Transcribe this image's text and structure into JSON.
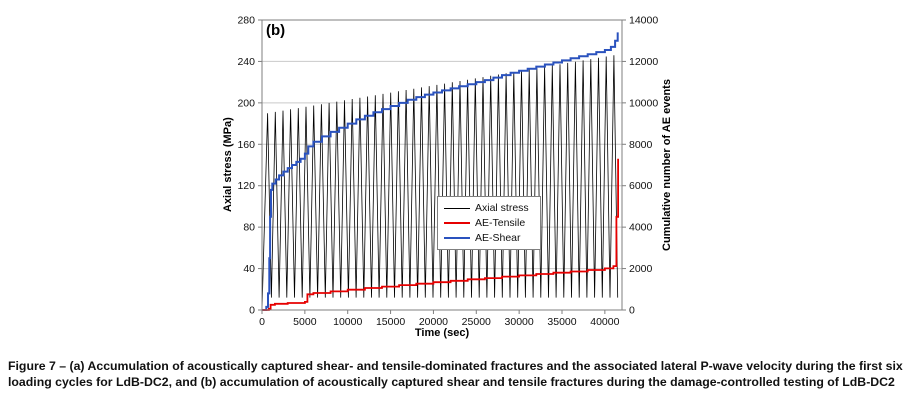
{
  "caption": {
    "line1": "Figure 7 – (a) Accumulation of acoustically captured shear- and tensile-dominated fractures and the associated lateral P-wave velocity during the first six",
    "line2": "loading cycles for LdB-DC2, and (b) accumulation of acoustically captured shear and tensile fractures during the damage-controlled testing of LdB-DC2"
  },
  "chart_data": {
    "type": "line",
    "title": "",
    "panel_label": "(b)",
    "xlabel": "Time (sec)",
    "ylabel_left": "Axial stress (MPa)",
    "ylabel_right": "Cumulative number of AE events",
    "xlim": [
      0,
      42000
    ],
    "xticks": [
      0,
      5000,
      10000,
      15000,
      20000,
      25000,
      30000,
      35000,
      40000
    ],
    "ylim_left": [
      0,
      280
    ],
    "yticks_left": [
      0,
      40,
      80,
      120,
      160,
      200,
      240,
      280
    ],
    "ylim_right": [
      0,
      14000
    ],
    "yticks_right": [
      0,
      2000,
      4000,
      6000,
      8000,
      10000,
      12000,
      14000
    ],
    "grid": "horizontal",
    "legend_position": "inside-right-middle",
    "legend": {
      "items": [
        {
          "label": "Axial stress",
          "color": "#000000"
        },
        {
          "label": "AE-Tensile",
          "color": "#e60000"
        },
        {
          "label": "AE-Shear",
          "color": "#2a52be"
        }
      ]
    },
    "series": {
      "axial_stress": {
        "label": "Axial stress",
        "axis": "left",
        "color": "#000000",
        "pattern": "cyclic-triangle-wave",
        "cycles": 46,
        "t_start": 200,
        "t_end": 41500,
        "min_stress": 12,
        "peak_start": 190,
        "peak_end": 246
      },
      "ae_shear": {
        "label": "AE-Shear",
        "axis": "right",
        "color": "#2a52be",
        "step": true,
        "points": [
          [
            0,
            0
          ],
          [
            500,
            150
          ],
          [
            700,
            800
          ],
          [
            850,
            2500
          ],
          [
            950,
            4500
          ],
          [
            1050,
            5800
          ],
          [
            1200,
            6100
          ],
          [
            1600,
            6300
          ],
          [
            2000,
            6500
          ],
          [
            2500,
            6680
          ],
          [
            3000,
            6850
          ],
          [
            3500,
            7000
          ],
          [
            4000,
            7150
          ],
          [
            4500,
            7300
          ],
          [
            5000,
            7550
          ],
          [
            5400,
            7900
          ],
          [
            6000,
            8120
          ],
          [
            7000,
            8380
          ],
          [
            8000,
            8600
          ],
          [
            9000,
            8800
          ],
          [
            10000,
            9000
          ],
          [
            11000,
            9200
          ],
          [
            12000,
            9380
          ],
          [
            13000,
            9550
          ],
          [
            14000,
            9700
          ],
          [
            15000,
            9850
          ],
          [
            16000,
            10000
          ],
          [
            17000,
            10150
          ],
          [
            18000,
            10280
          ],
          [
            19000,
            10400
          ],
          [
            20000,
            10500
          ],
          [
            21000,
            10600
          ],
          [
            22000,
            10700
          ],
          [
            23000,
            10800
          ],
          [
            24000,
            10900
          ],
          [
            25000,
            11000
          ],
          [
            26000,
            11100
          ],
          [
            27000,
            11220
          ],
          [
            28000,
            11340
          ],
          [
            29000,
            11450
          ],
          [
            30000,
            11550
          ],
          [
            31000,
            11650
          ],
          [
            32000,
            11750
          ],
          [
            33000,
            11850
          ],
          [
            34000,
            11950
          ],
          [
            35000,
            12050
          ],
          [
            36000,
            12150
          ],
          [
            37000,
            12250
          ],
          [
            38000,
            12350
          ],
          [
            39000,
            12450
          ],
          [
            40000,
            12550
          ],
          [
            40700,
            12700
          ],
          [
            41200,
            13000
          ],
          [
            41500,
            13400
          ]
        ]
      },
      "ae_tensile": {
        "label": "AE-Tensile",
        "axis": "right",
        "color": "#e60000",
        "step": true,
        "points": [
          [
            0,
            0
          ],
          [
            800,
            60
          ],
          [
            1000,
            250
          ],
          [
            1500,
            300
          ],
          [
            3000,
            340
          ],
          [
            5000,
            390
          ],
          [
            5300,
            760
          ],
          [
            6000,
            820
          ],
          [
            8000,
            900
          ],
          [
            10000,
            980
          ],
          [
            12000,
            1060
          ],
          [
            14000,
            1130
          ],
          [
            16000,
            1200
          ],
          [
            18000,
            1270
          ],
          [
            20000,
            1340
          ],
          [
            22000,
            1410
          ],
          [
            24000,
            1480
          ],
          [
            26000,
            1540
          ],
          [
            28000,
            1610
          ],
          [
            30000,
            1670
          ],
          [
            32000,
            1740
          ],
          [
            34000,
            1800
          ],
          [
            36000,
            1860
          ],
          [
            38000,
            1930
          ],
          [
            40000,
            2010
          ],
          [
            41000,
            2120
          ],
          [
            41350,
            4500
          ],
          [
            41550,
            7300
          ]
        ]
      }
    }
  }
}
